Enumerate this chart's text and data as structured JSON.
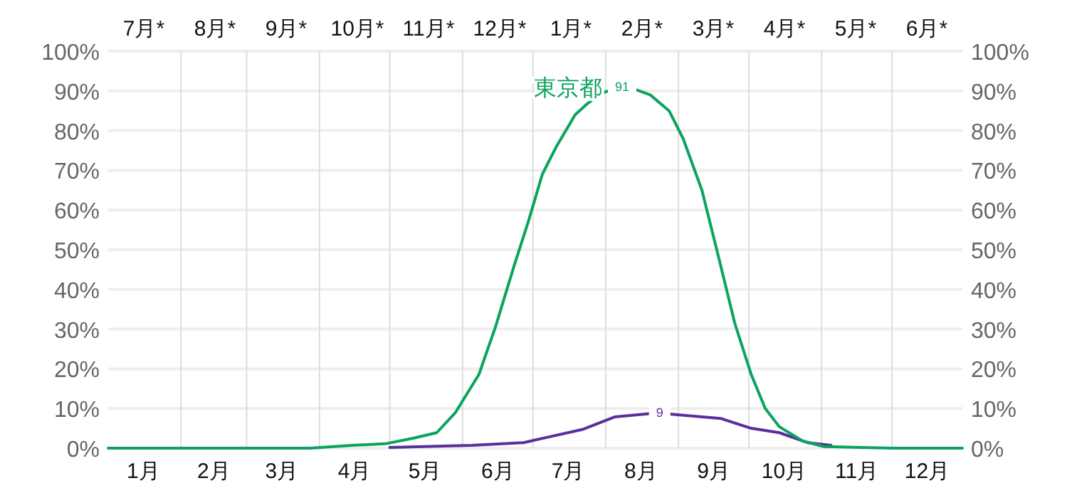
{
  "chart_data": {
    "type": "line",
    "xlim": [
      "--01-01",
      "--12-31"
    ],
    "ylim": [
      0,
      100
    ],
    "xticks": [
      {
        "value": "--01-16",
        "label": "1月"
      },
      {
        "value": "--02-01",
        "label": null
      },
      {
        "value": "--02-15",
        "label": "2月"
      },
      {
        "value": "--03-01",
        "label": null
      },
      {
        "value": "--03-16",
        "label": "3月"
      },
      {
        "value": "--04-01",
        "label": null
      },
      {
        "value": "--04-16",
        "label": "4月"
      },
      {
        "value": "--05-01",
        "label": null
      },
      {
        "value": "--05-16",
        "label": "5月"
      },
      {
        "value": "--06-01",
        "label": null
      },
      {
        "value": "--06-16",
        "label": "6月"
      },
      {
        "value": "--07-01",
        "label": null
      },
      {
        "value": "--07-16",
        "label": "7月"
      },
      {
        "value": "--08-01",
        "label": null
      },
      {
        "value": "--08-16",
        "label": "8月"
      },
      {
        "value": "--09-01",
        "label": null
      },
      {
        "value": "--09-16",
        "label": "9月"
      },
      {
        "value": "--10-01",
        "label": null
      },
      {
        "value": "--10-16",
        "label": "10月"
      },
      {
        "value": "--11-01",
        "label": null
      },
      {
        "value": "--11-16",
        "label": "11月"
      },
      {
        "value": "--12-01",
        "label": null
      },
      {
        "value": "--12-16",
        "label": "12月"
      }
    ],
    "annotations": [
      "7月*",
      "8月*",
      "9月*",
      "10月*",
      "11月*",
      "12月*",
      "1月*",
      "2月*",
      "3月*",
      "4月*",
      "5月*",
      "6月*"
    ],
    "yticks": [
      {
        "value": 0,
        "label": "0%"
      },
      {
        "value": 10,
        "label": "10%"
      },
      {
        "value": 20,
        "label": "20%"
      },
      {
        "value": 30,
        "label": "30%"
      },
      {
        "value": 40,
        "label": "40%"
      },
      {
        "value": 50,
        "label": "50%"
      },
      {
        "value": 60,
        "label": "60%"
      },
      {
        "value": 70,
        "label": "70%"
      },
      {
        "value": 80,
        "label": "80%"
      },
      {
        "value": 90,
        "label": "90%"
      },
      {
        "value": 100,
        "label": "100%"
      }
    ],
    "y2lim": [
      0,
      100
    ],
    "y2ticks": [
      {
        "value": 0,
        "label": "0%"
      },
      {
        "value": 10,
        "label": "10%"
      },
      {
        "value": 20,
        "label": "20%"
      },
      {
        "value": 30,
        "label": "30%"
      },
      {
        "value": 40,
        "label": "40%"
      },
      {
        "value": 50,
        "label": "50%"
      },
      {
        "value": 60,
        "label": "60%"
      },
      {
        "value": 70,
        "label": "70%"
      },
      {
        "value": 80,
        "label": "80%"
      },
      {
        "value": 90,
        "label": "90%"
      },
      {
        "value": 100,
        "label": "100%"
      }
    ],
    "grid": true,
    "series": [
      {
        "name": "東京都",
        "color": "#0ba35e",
        "x": [
          "--01-01",
          "--02-01",
          "--03-01",
          "--03-28",
          "--04-15",
          "--04-29",
          "--05-11",
          "--05-21",
          "--05-29",
          "--06-08",
          "--06-15",
          "--06-23",
          "--06-29",
          "--07-05",
          "--07-11",
          "--07-19",
          "--07-24",
          "--07-31",
          "--08-08",
          "--08-14",
          "--08-20",
          "--08-28",
          "--09-03",
          "--09-11",
          "--09-19",
          "--09-25",
          "--10-02",
          "--10-08",
          "--10-14",
          "--10-24",
          "--11-02",
          "--12-01",
          "--12-31"
        ],
        "values": [
          0,
          0,
          0,
          0,
          0.7,
          1.1,
          2.5,
          3.9,
          9,
          18.6,
          30.5,
          46,
          57,
          69,
          76,
          84,
          86.7,
          89.6,
          91,
          90.3,
          89,
          85,
          78,
          65,
          46,
          31.5,
          18.6,
          10,
          5.4,
          1.8,
          0.4,
          0,
          0
        ],
        "value_labels": [
          null,
          null,
          null,
          null,
          null,
          null,
          null,
          null,
          null,
          null,
          null,
          null,
          null,
          null,
          null,
          null,
          null,
          null,
          "91",
          null,
          null,
          null,
          null,
          null,
          null,
          null,
          null,
          null,
          null,
          null,
          null,
          null,
          null
        ]
      },
      {
        "color": "#5b2f9a",
        "x": [
          "--05-01",
          "--06-05",
          "--06-21",
          "--06-27",
          "--07-22",
          "--08-05",
          "--08-18",
          "--08-24",
          "--08-28",
          "--09-19",
          "--10-02",
          "--10-14",
          "--10-26",
          "--11-05"
        ],
        "values": [
          0.2,
          0.7,
          1.2,
          1.4,
          4.7,
          7.9,
          8.6,
          9,
          8.6,
          7.5,
          5,
          3.9,
          1.4,
          0.7
        ],
        "value_labels": [
          null,
          null,
          null,
          null,
          null,
          null,
          null,
          "9",
          null,
          null,
          null,
          null,
          null,
          null
        ]
      }
    ]
  }
}
